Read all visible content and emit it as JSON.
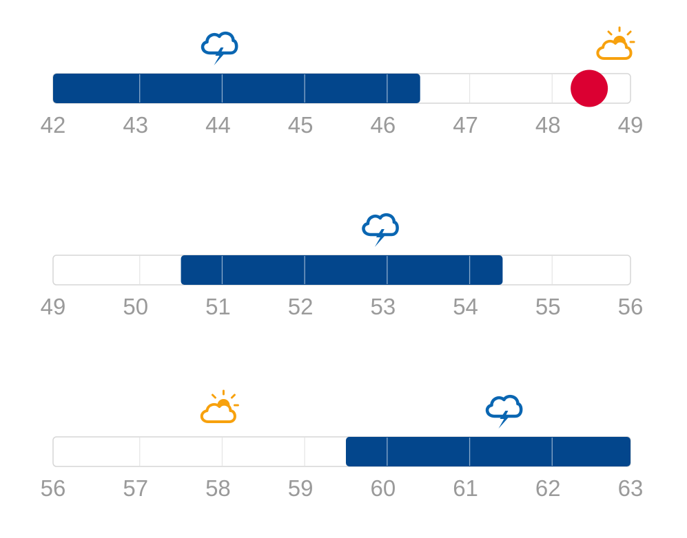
{
  "colors": {
    "bar": "#03468c",
    "track_fill": "#ffffff",
    "track_border": "#d6d6d6",
    "grid_line": "#e6e6e6",
    "grid_line_on_bar": "#ffffff",
    "tick_text": "#9a9a9a",
    "marker": "#db0032",
    "storm_icon": "#0a66b2",
    "sun_icon": "#f7a10d",
    "cloud_icon": "#f7a10d"
  },
  "chart_data": [
    {
      "type": "range-bar",
      "axis": {
        "min": 42,
        "max": 49,
        "ticks": [
          "42",
          "43",
          "44",
          "45",
          "46",
          "47",
          "48",
          "49"
        ]
      },
      "range": [
        42,
        46.45
      ],
      "icons": [
        {
          "name": "thunderstorm-icon",
          "at": 44
        },
        {
          "name": "partly-sunny-icon",
          "at": 48.8
        }
      ],
      "markers": [
        {
          "name": "current-position-marker",
          "at": 48.5
        }
      ]
    },
    {
      "type": "range-bar",
      "axis": {
        "min": 49,
        "max": 56,
        "ticks": [
          "49",
          "50",
          "51",
          "52",
          "53",
          "54",
          "55",
          "56"
        ]
      },
      "range": [
        50.55,
        54.45
      ],
      "icons": [
        {
          "name": "thunderstorm-icon",
          "at": 52.95
        }
      ],
      "markers": []
    },
    {
      "type": "range-bar",
      "axis": {
        "min": 56,
        "max": 63,
        "ticks": [
          "56",
          "57",
          "58",
          "59",
          "60",
          "61",
          "62",
          "63"
        ]
      },
      "range": [
        59.55,
        63
      ],
      "icons": [
        {
          "name": "partly-sunny-icon",
          "at": 58
        },
        {
          "name": "thunderstorm-icon",
          "at": 61.45
        }
      ],
      "markers": []
    }
  ]
}
